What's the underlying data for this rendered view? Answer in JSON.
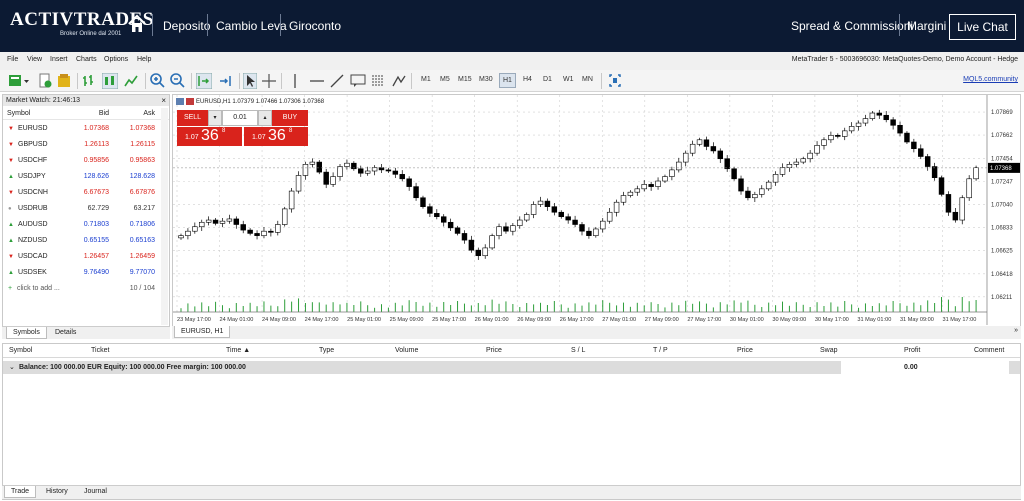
{
  "brand": {
    "logo": "ACTIVTRADES",
    "tagline": "Broker Online dal 2001"
  },
  "topnav": {
    "items": [
      "Deposito",
      "Cambio Leva",
      "Giroconto"
    ],
    "right_items": [
      "Spread & Commissioni",
      "Margini"
    ],
    "live_chat": "Live Chat"
  },
  "menu": {
    "items": [
      "File",
      "View",
      "Insert",
      "Charts",
      "Options",
      "Help"
    ],
    "account": "MetaTrader 5 - 5003696030: MetaQuotes-Demo, Demo Account - Hedge"
  },
  "toolbar": {
    "timeframes": [
      "M1",
      "M5",
      "M15",
      "M30",
      "H1",
      "H4",
      "D1",
      "W1",
      "MN"
    ],
    "active_timeframe": "H1",
    "mql5": "MQL5.community"
  },
  "market_watch": {
    "title": "Market Watch: 21:46:13",
    "headers": {
      "symbol": "Symbol",
      "bid": "Bid",
      "ask": "Ask"
    },
    "rows": [
      {
        "symbol": "EURUSD",
        "bid": "1.07368",
        "ask": "1.07368",
        "dir": "down"
      },
      {
        "symbol": "GBPUSD",
        "bid": "1.26113",
        "ask": "1.26115",
        "dir": "down"
      },
      {
        "symbol": "USDCHF",
        "bid": "0.95856",
        "ask": "0.95863",
        "dir": "down"
      },
      {
        "symbol": "USDJPY",
        "bid": "128.626",
        "ask": "128.628",
        "dir": "up"
      },
      {
        "symbol": "USDCNH",
        "bid": "6.67673",
        "ask": "6.67876",
        "dir": "down"
      },
      {
        "symbol": "USDRUB",
        "bid": "62.729",
        "ask": "63.217",
        "dir": "flat"
      },
      {
        "symbol": "AUDUSD",
        "bid": "0.71803",
        "ask": "0.71806",
        "dir": "up"
      },
      {
        "symbol": "NZDUSD",
        "bid": "0.65155",
        "ask": "0.65163",
        "dir": "up"
      },
      {
        "symbol": "USDCAD",
        "bid": "1.26457",
        "ask": "1.26459",
        "dir": "down"
      },
      {
        "symbol": "USDSEK",
        "bid": "9.76490",
        "ask": "9.77070",
        "dir": "up"
      }
    ],
    "add_label": "click to add ...",
    "count": "10 / 104",
    "tabs": [
      "Symbols",
      "Details"
    ]
  },
  "chart": {
    "header": "EURUSD,H1  1.07379 1.07466 1.07306 1.07368",
    "sell_label": "SELL",
    "buy_label": "BUY",
    "lot": "0.01",
    "sell_price_small": "1.07",
    "sell_price_big": "36",
    "sell_price_sup": "8",
    "buy_price_small": "1.07",
    "buy_price_big": "36",
    "buy_price_sup": "8",
    "current_price": "1.07368",
    "tab": "EURUSD, H1"
  },
  "chart_data": {
    "type": "candlestick",
    "symbol": "EURUSD",
    "timeframe": "H1",
    "y_ticks": [
      "1.07869",
      "1.07662",
      "1.07454",
      "1.07247",
      "1.07040",
      "1.06833",
      "1.06625",
      "1.06418",
      "1.06211"
    ],
    "x_ticks": [
      "23 May 17:00",
      "24 May 01:00",
      "24 May 09:00",
      "24 May 17:00",
      "25 May 01:00",
      "25 May 09:00",
      "25 May 17:00",
      "26 May 01:00",
      "26 May 09:00",
      "26 May 17:00",
      "27 May 01:00",
      "27 May 09:00",
      "27 May 17:00",
      "30 May 01:00",
      "30 May 09:00",
      "30 May 17:00",
      "31 May 01:00",
      "31 May 09:00",
      "31 May 17:00"
    ],
    "ylim": [
      1.0612,
      1.0795
    ],
    "closes": [
      1.0676,
      1.068,
      1.0684,
      1.0688,
      1.069,
      1.0687,
      1.0689,
      1.0691,
      1.0686,
      1.0681,
      1.0678,
      1.0676,
      1.068,
      1.0679,
      1.0686,
      1.07,
      1.0716,
      1.073,
      1.074,
      1.0742,
      1.0733,
      1.0722,
      1.0729,
      1.0738,
      1.0741,
      1.0736,
      1.0732,
      1.0734,
      1.0737,
      1.0735,
      1.0734,
      1.0731,
      1.0727,
      1.072,
      1.071,
      1.0702,
      1.0696,
      1.0693,
      1.0688,
      1.0683,
      1.0678,
      1.0672,
      1.0663,
      1.0658,
      1.0665,
      1.0676,
      1.0684,
      1.068,
      1.0685,
      1.069,
      1.0695,
      1.0704,
      1.0707,
      1.0702,
      1.0697,
      1.0693,
      1.069,
      1.0686,
      1.068,
      1.0676,
      1.0682,
      1.0689,
      1.0697,
      1.0706,
      1.0712,
      1.0715,
      1.0718,
      1.0722,
      1.072,
      1.0725,
      1.0729,
      1.0735,
      1.0742,
      1.075,
      1.0758,
      1.0762,
      1.0756,
      1.0752,
      1.0745,
      1.0736,
      1.0727,
      1.0716,
      1.071,
      1.0713,
      1.0718,
      1.0724,
      1.0731,
      1.0737,
      1.074,
      1.0742,
      1.0745,
      1.075,
      1.0757,
      1.0762,
      1.0766,
      1.0765,
      1.077,
      1.0774,
      1.0777,
      1.0781,
      1.0786,
      1.0784,
      1.078,
      1.0775,
      1.0768,
      1.076,
      1.0754,
      1.0747,
      1.0738,
      1.0728,
      1.0713,
      1.0697,
      1.069,
      1.071,
      1.0727,
      1.0737
    ]
  },
  "terminal": {
    "headers": [
      "Symbol",
      "Ticket",
      "Time",
      "Type",
      "Volume",
      "Price",
      "S / L",
      "T / P",
      "Price",
      "Swap",
      "Profit",
      "Comment"
    ],
    "balance_text": "Balance: 100 000.00 EUR  Equity: 100 000.00  Free margin: 100 000.00",
    "profit": "0.00",
    "tabs": [
      "Trade",
      "History",
      "Journal"
    ]
  },
  "colors": {
    "brand_bg": "#0c1a33",
    "sell": "#d9231c",
    "buy": "#d9231c",
    "up_price": "#1a3ed0",
    "down_price": "#d9231c"
  }
}
